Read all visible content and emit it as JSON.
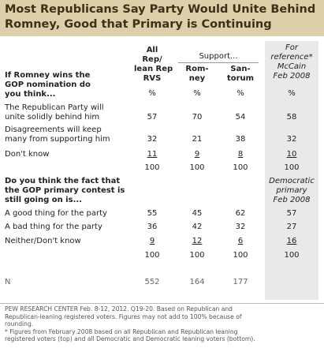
{
  "title_line1": "Most Republicans Say Party Would Unite Behind",
  "title_line2": "Romney, Good that Primary is Continuing",
  "header": {
    "all_rep_line1": "All",
    "all_rep_line2": "Rep/",
    "all_rep_line3": "lean Rep",
    "all_rep_line4": "RVS",
    "support": "Support...",
    "romney_line1": "Rom-",
    "romney_line2": "ney",
    "santorum_line1": "San-",
    "santorum_line2": "torum",
    "ref_line1": "For",
    "ref_line2": "reference*",
    "ref_line3": "McCain",
    "ref_line4": "Feb 2008",
    "pct": "%"
  },
  "chart_data": {
    "type": "table",
    "title": "Most Republicans Say Party Would Unite Behind Romney, Good that Primary is Continuing",
    "columns": [
      "All Rep/lean Rep RVS",
      "Romney",
      "Santorum",
      "McCain Feb 2008"
    ],
    "q1": {
      "q_line1": "If Romney wins the",
      "q_line2": "GOP nomination do",
      "q_line3": "you think...",
      "rows": [
        {
          "label_line1": "The Republican Party will",
          "label_line2": "unite solidly behind him",
          "values": [
            "57",
            "70",
            "54",
            "58"
          ]
        },
        {
          "label_line1": "Disagreements will keep",
          "label_line2": "many from supporting him",
          "values": [
            "32",
            "21",
            "38",
            "32"
          ]
        },
        {
          "label_line1": "Don't know",
          "label_line2": "",
          "values": [
            "11",
            "9",
            "8",
            "10"
          ]
        }
      ],
      "totals": [
        "100",
        "100",
        "100",
        "100"
      ]
    },
    "q2": {
      "q_line1": "Do you think the fact that",
      "q_line2": "the GOP primary contest is",
      "q_line3": "still going on is...",
      "ref_line1": "Democratic",
      "ref_line2": "primary",
      "ref_line3": "Feb 2008",
      "rows": [
        {
          "label": "A good thing for the party",
          "values": [
            "55",
            "45",
            "62",
            "57"
          ]
        },
        {
          "label": "A bad thing for the party",
          "values": [
            "36",
            "42",
            "32",
            "27"
          ]
        },
        {
          "label": "Neither/Don't know",
          "values": [
            "9",
            "12",
            "6",
            "16"
          ]
        }
      ],
      "totals": [
        "100",
        "100",
        "100",
        "100"
      ]
    },
    "n_label": "N",
    "n_values": [
      "552",
      "164",
      "177"
    ]
  },
  "footnotes": {
    "line1": "PEW RESEARCH CENTER Feb. 8-12, 2012. Q19-20.  Based on Republican and",
    "line2": "Republican-leaning registered voters. Figures may not add to 100% because of",
    "line3": "rounding.",
    "line4": "* Figures from February 2008 based on all Republican and Republican leaning",
    "line5": "registered voters (top) and all Democratic and Democratic leaning voters (bottom)."
  }
}
